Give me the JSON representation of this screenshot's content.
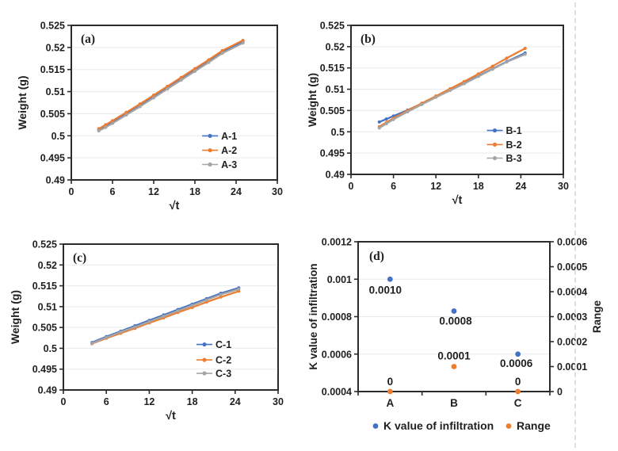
{
  "page": {
    "background": "#ffffff"
  },
  "palette": {
    "blue": "#4472c4",
    "orange": "#ed7d31",
    "gray": "#a5a5a5",
    "green": "#6f9f3f",
    "text": "#1f1f1f",
    "grid": "#e8eaec",
    "axis": "#2b2b2b",
    "edge_line": "#dedede"
  },
  "chart_data": [
    {
      "id": "a",
      "type": "line",
      "panel_label": "(a)",
      "xlabel": "√t",
      "ylabel": "Weight (g)",
      "xlim": [
        0,
        30
      ],
      "xticks": [
        0,
        6,
        12,
        18,
        24,
        30
      ],
      "xtick_labels": [
        "0",
        "6",
        "12",
        "18",
        "24",
        "30"
      ],
      "ylim": [
        0.49,
        0.525
      ],
      "yticks": [
        0.49,
        0.495,
        0.5,
        0.505,
        0.51,
        0.515,
        0.52,
        0.525
      ],
      "ytick_labels": [
        "0.49",
        "0.495",
        "0.5",
        "0.505",
        "0.51",
        "0.515",
        "0.52",
        "0.525"
      ],
      "grid": "horizontal",
      "legend_position": "inside-lower-right",
      "series": [
        {
          "name": "A-1",
          "color_key": "blue",
          "points": [
            [
              4,
              0.5014
            ],
            [
              5,
              0.5022
            ],
            [
              6,
              0.5031
            ],
            [
              8,
              0.505
            ],
            [
              10,
              0.5069
            ],
            [
              12,
              0.5089
            ],
            [
              14,
              0.5109
            ],
            [
              16,
              0.5129
            ],
            [
              18,
              0.5149
            ],
            [
              20,
              0.5169
            ],
            [
              22,
              0.519
            ],
            [
              25,
              0.5213
            ]
          ]
        },
        {
          "name": "A-2",
          "color_key": "orange",
          "points": [
            [
              4,
              0.5016
            ],
            [
              5,
              0.5025
            ],
            [
              6,
              0.5034
            ],
            [
              8,
              0.5053
            ],
            [
              10,
              0.5072
            ],
            [
              12,
              0.5092
            ],
            [
              14,
              0.5112
            ],
            [
              16,
              0.5132
            ],
            [
              18,
              0.5152
            ],
            [
              20,
              0.5172
            ],
            [
              22,
              0.5193
            ],
            [
              25,
              0.5216
            ]
          ]
        },
        {
          "name": "A-3",
          "color_key": "gray",
          "points": [
            [
              4,
              0.5011
            ],
            [
              5,
              0.5019
            ],
            [
              6,
              0.5028
            ],
            [
              8,
              0.5047
            ],
            [
              10,
              0.5066
            ],
            [
              12,
              0.5086
            ],
            [
              14,
              0.5106
            ],
            [
              16,
              0.5126
            ],
            [
              18,
              0.5146
            ],
            [
              20,
              0.5166
            ],
            [
              22,
              0.5187
            ],
            [
              25,
              0.521
            ]
          ]
        }
      ]
    },
    {
      "id": "b",
      "type": "line",
      "panel_label": "(b)",
      "xlabel": "√t",
      "ylabel": "Weight (g)",
      "xlim": [
        0,
        30
      ],
      "xticks": [
        0,
        6,
        12,
        18,
        24,
        30
      ],
      "xtick_labels": [
        "0",
        "6",
        "12",
        "18",
        "24",
        "30"
      ],
      "ylim": [
        0.49,
        0.525
      ],
      "yticks": [
        0.49,
        0.495,
        0.5,
        0.505,
        0.51,
        0.515,
        0.52,
        0.525
      ],
      "ytick_labels": [
        "0.49",
        "0.495",
        "0.5",
        "0.505",
        "0.51",
        "0.515",
        "0.52",
        "0.525"
      ],
      "grid": "horizontal",
      "legend_position": "inside-lower-right",
      "series": [
        {
          "name": "B-1",
          "color_key": "blue",
          "points": [
            [
              4,
              0.5023
            ],
            [
              5,
              0.503
            ],
            [
              6,
              0.5037
            ],
            [
              8,
              0.5051
            ],
            [
              10,
              0.5066
            ],
            [
              12,
              0.5082
            ],
            [
              14,
              0.5098
            ],
            [
              16,
              0.5114
            ],
            [
              18,
              0.5131
            ],
            [
              20,
              0.5148
            ],
            [
              22,
              0.5165
            ],
            [
              24.6,
              0.5185
            ]
          ]
        },
        {
          "name": "B-2",
          "color_key": "orange",
          "points": [
            [
              4,
              0.5012
            ],
            [
              5,
              0.5022
            ],
            [
              6,
              0.5032
            ],
            [
              8,
              0.505
            ],
            [
              10,
              0.5067
            ],
            [
              12,
              0.5084
            ],
            [
              14,
              0.5101
            ],
            [
              16,
              0.5118
            ],
            [
              18,
              0.5136
            ],
            [
              20,
              0.5154
            ],
            [
              22,
              0.5173
            ],
            [
              24.6,
              0.5196
            ]
          ]
        },
        {
          "name": "B-3",
          "color_key": "gray",
          "points": [
            [
              4,
              0.5009
            ],
            [
              5,
              0.5019
            ],
            [
              6,
              0.5029
            ],
            [
              8,
              0.5047
            ],
            [
              10,
              0.5064
            ],
            [
              12,
              0.5081
            ],
            [
              14,
              0.5097
            ],
            [
              16,
              0.5113
            ],
            [
              18,
              0.513
            ],
            [
              20,
              0.5147
            ],
            [
              22,
              0.5164
            ],
            [
              24.6,
              0.5182
            ]
          ]
        }
      ]
    },
    {
      "id": "c",
      "type": "line",
      "panel_label": "(c)",
      "xlabel": "√t",
      "ylabel": "Weight (g)",
      "xlim": [
        0,
        30
      ],
      "xticks": [
        0,
        6,
        12,
        18,
        24,
        30
      ],
      "xtick_labels": [
        "0",
        "6",
        "12",
        "18",
        "24",
        "30"
      ],
      "ylim": [
        0.49,
        0.525
      ],
      "yticks": [
        0.49,
        0.495,
        0.5,
        0.505,
        0.51,
        0.515,
        0.52,
        0.525
      ],
      "ytick_labels": [
        "0.49",
        "0.495",
        "0.5",
        "0.505",
        "0.51",
        "0.515",
        "0.52",
        "0.525"
      ],
      "grid": "horizontal",
      "legend_position": "inside-lower-right",
      "series": [
        {
          "name": "C-1",
          "color_key": "blue",
          "points": [
            [
              4,
              0.5014
            ],
            [
              6,
              0.5028
            ],
            [
              8,
              0.5041
            ],
            [
              10,
              0.5054
            ],
            [
              12,
              0.5067
            ],
            [
              14,
              0.508
            ],
            [
              16,
              0.5093
            ],
            [
              18,
              0.5106
            ],
            [
              20,
              0.5119
            ],
            [
              22,
              0.5132
            ],
            [
              24.5,
              0.5145
            ]
          ]
        },
        {
          "name": "C-2",
          "color_key": "orange",
          "points": [
            [
              4,
              0.5011
            ],
            [
              6,
              0.5024
            ],
            [
              8,
              0.5036
            ],
            [
              10,
              0.5048
            ],
            [
              12,
              0.5061
            ],
            [
              14,
              0.5073
            ],
            [
              16,
              0.5086
            ],
            [
              18,
              0.5098
            ],
            [
              20,
              0.5111
            ],
            [
              22,
              0.5123
            ],
            [
              24.5,
              0.5137
            ]
          ]
        },
        {
          "name": "C-3",
          "color_key": "gray",
          "points": [
            [
              4,
              0.5012
            ],
            [
              6,
              0.5026
            ],
            [
              8,
              0.5039
            ],
            [
              10,
              0.5051
            ],
            [
              12,
              0.5064
            ],
            [
              14,
              0.5077
            ],
            [
              16,
              0.509
            ],
            [
              18,
              0.5103
            ],
            [
              20,
              0.5116
            ],
            [
              22,
              0.5129
            ],
            [
              24.5,
              0.5142
            ]
          ]
        }
      ]
    },
    {
      "id": "d",
      "type": "scatter",
      "panel_label": "(d)",
      "categories": [
        "A",
        "B",
        "C"
      ],
      "left_axis": {
        "label": "K value of infiltration",
        "lim": [
          0.0004,
          0.0012
        ],
        "ticks": [
          0.0004,
          0.0006,
          0.0008,
          0.001,
          0.0012
        ],
        "tick_labels": [
          "0.0004",
          "0.0006",
          "0.0008",
          "0.001",
          "0.0012"
        ],
        "color_key": "text"
      },
      "right_axis": {
        "label": "Range",
        "lim": [
          0,
          0.0006
        ],
        "ticks": [
          0,
          0.0001,
          0.0002,
          0.0003,
          0.0004,
          0.0005,
          0.0006
        ],
        "tick_labels": [
          "0",
          "0.0001",
          "0.0002",
          "0.0003",
          "0.0004",
          "0.0005",
          "0.0006"
        ],
        "color_key": "green"
      },
      "grid": "horizontal",
      "legend_position": "below-center",
      "series": [
        {
          "name": "K value of infiltration",
          "axis": "left",
          "color_key": "blue",
          "values": [
            0.001,
            0.00083,
            0.0006
          ],
          "point_labels": [
            "0.0010",
            "0.0008",
            "0.0006"
          ],
          "label_color_key": "text",
          "label_offsets": [
            [
              -6,
              18
            ],
            [
              2,
              17
            ],
            [
              -2,
              16
            ]
          ]
        },
        {
          "name": "Range",
          "axis": "right",
          "color_key": "orange",
          "values": [
            0,
            0.0001,
            0
          ],
          "point_labels": [
            "0",
            "0.0001",
            "0"
          ],
          "label_color_key": "green",
          "label_offsets": [
            [
              0,
              -8
            ],
            [
              0,
              -9
            ],
            [
              0,
              -8
            ]
          ]
        }
      ],
      "legend": [
        {
          "label": "K value of infiltration",
          "color_key": "blue"
        },
        {
          "label": "Range",
          "color_key": "orange"
        }
      ]
    }
  ]
}
